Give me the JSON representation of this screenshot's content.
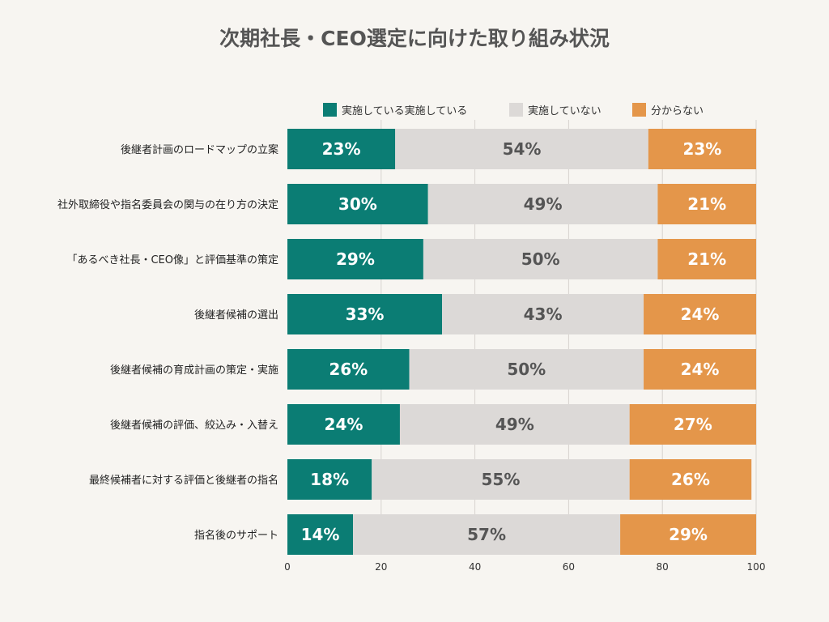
{
  "chart_data": {
    "type": "bar",
    "orientation": "horizontal",
    "stacked": true,
    "title": "次期社長・CEO選定に向けた取り組み状況",
    "categories": [
      "後継者計画のロードマップの立案",
      "社外取締役や指名委員会の関与の在り方の決定",
      "「あるべき社長・CEO像」と評価基準の策定",
      "後継者候補の選出",
      "後継者候補の育成計画の策定・実施",
      "後継者候補の評価、絞込み・入替え",
      "最終候補者に対する評価と後継者の指名",
      "指名後のサポート"
    ],
    "series": [
      {
        "name": "実施している実施している",
        "color": "#0b7d74",
        "label_color": "#ffffff",
        "values": [
          23,
          30,
          29,
          33,
          26,
          24,
          18,
          14
        ]
      },
      {
        "name": "実施していない",
        "color": "#dcd9d7",
        "label_color": "#555555",
        "values": [
          54,
          49,
          50,
          43,
          50,
          49,
          55,
          57
        ]
      },
      {
        "name": "分からない",
        "color": "#e4964a",
        "label_color": "#ffffff",
        "values": [
          23,
          21,
          21,
          24,
          24,
          27,
          26,
          29
        ]
      }
    ],
    "value_suffix": "%",
    "xlim": [
      0,
      100
    ],
    "xticks": [
      0,
      20,
      40,
      60,
      80,
      100
    ],
    "grid": true,
    "legend_position": "top-right"
  }
}
